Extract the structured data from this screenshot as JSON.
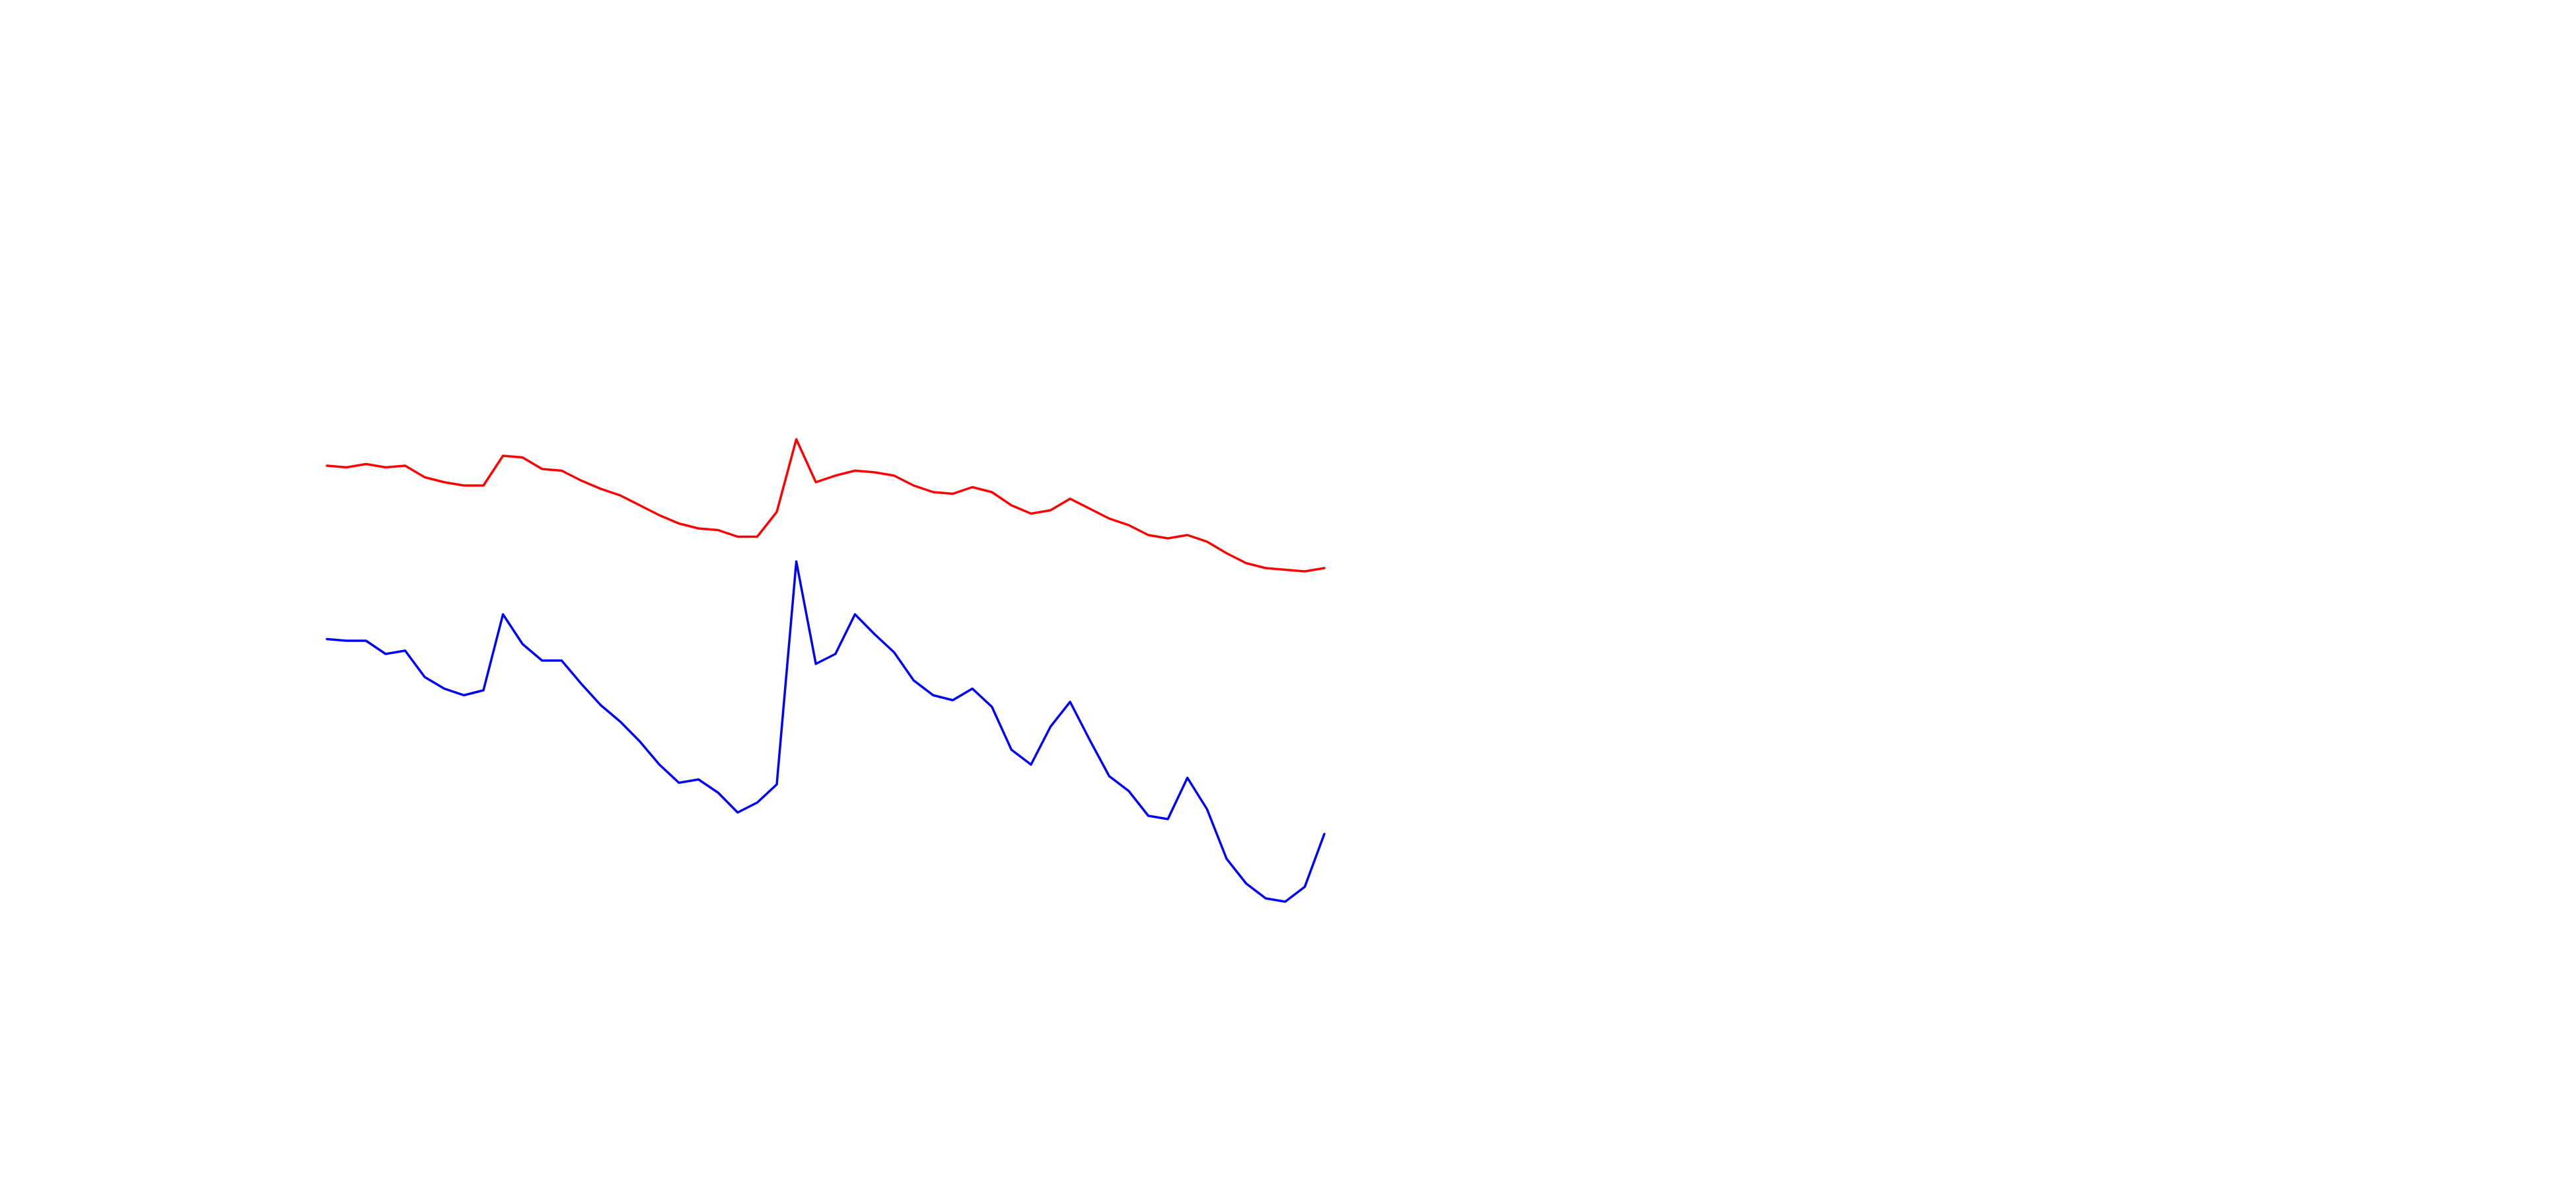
{
  "chart_data": {
    "type": "line",
    "ylim": [
      160,
      480
    ],
    "series": [
      {
        "color": "#ff0000",
        "values": [
          438,
          437,
          439,
          437,
          438,
          431,
          428,
          426,
          426,
          444,
          443,
          436,
          435,
          429,
          424,
          420,
          414,
          408,
          403,
          400,
          399,
          395,
          395,
          410,
          454,
          428,
          432,
          435,
          434,
          432,
          426,
          422,
          421,
          425,
          422,
          414,
          409,
          411,
          418,
          412,
          406,
          402,
          396,
          394,
          396,
          392,
          385,
          379,
          376,
          375,
          374,
          376
        ]
      },
      {
        "color": "#0000ff",
        "values": [
          333,
          332,
          332,
          324,
          326,
          310,
          303,
          299,
          302,
          348,
          330,
          320,
          320,
          306,
          293,
          283,
          271,
          257,
          246,
          248,
          240,
          228,
          234,
          245,
          380,
          318,
          324,
          348,
          336,
          325,
          308,
          299,
          296,
          303,
          292,
          266,
          257,
          280,
          295,
          272,
          250,
          241,
          226,
          224,
          249,
          230,
          200,
          185,
          176,
          174,
          183,
          215
        ]
      }
    ]
  }
}
